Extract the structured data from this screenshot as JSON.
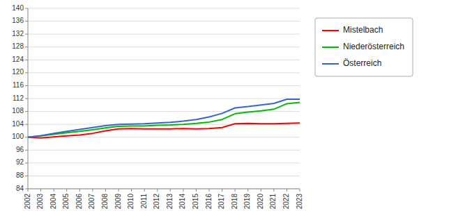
{
  "chart_data": {
    "type": "line",
    "x": [
      2002,
      2003,
      2004,
      2005,
      2006,
      2007,
      2008,
      2009,
      2010,
      2011,
      2012,
      2013,
      2014,
      2015,
      2016,
      2017,
      2018,
      2019,
      2020,
      2021,
      2022,
      2023
    ],
    "series": [
      {
        "name": "Mistelbach",
        "color": "#ff0000",
        "values": [
          100.0,
          99.8,
          100.1,
          100.4,
          100.7,
          101.2,
          102.0,
          102.6,
          102.7,
          102.6,
          102.6,
          102.6,
          102.7,
          102.6,
          102.7,
          103.0,
          104.2,
          104.3,
          104.2,
          104.2,
          104.3,
          104.4
        ]
      },
      {
        "name": "Niederösterreich",
        "color": "#00bb00",
        "values": [
          100.0,
          100.4,
          100.9,
          101.4,
          101.8,
          102.3,
          102.9,
          103.4,
          103.5,
          103.5,
          103.7,
          103.8,
          104.0,
          104.3,
          104.7,
          105.5,
          107.3,
          107.8,
          108.2,
          108.7,
          110.4,
          110.8
        ]
      },
      {
        "name": "Österreich",
        "color": "#3366cc",
        "values": [
          100.0,
          100.5,
          101.2,
          101.8,
          102.4,
          103.0,
          103.6,
          104.0,
          104.1,
          104.2,
          104.4,
          104.6,
          105.0,
          105.5,
          106.3,
          107.4,
          109.1,
          109.5,
          110.0,
          110.5,
          111.8,
          111.8
        ]
      }
    ],
    "xlim": [
      2002,
      2023
    ],
    "xticks": [
      2002,
      2003,
      2004,
      2005,
      2006,
      2007,
      2008,
      2009,
      2010,
      2011,
      2012,
      2013,
      2014,
      2015,
      2016,
      2017,
      2018,
      2019,
      2020,
      2021,
      2022,
      2023
    ],
    "ylim": [
      84,
      140
    ],
    "yticks": [
      84,
      88,
      92,
      96,
      100,
      104,
      108,
      112,
      116,
      120,
      124,
      128,
      132,
      136,
      140
    ],
    "grid": true,
    "legend": "right"
  }
}
